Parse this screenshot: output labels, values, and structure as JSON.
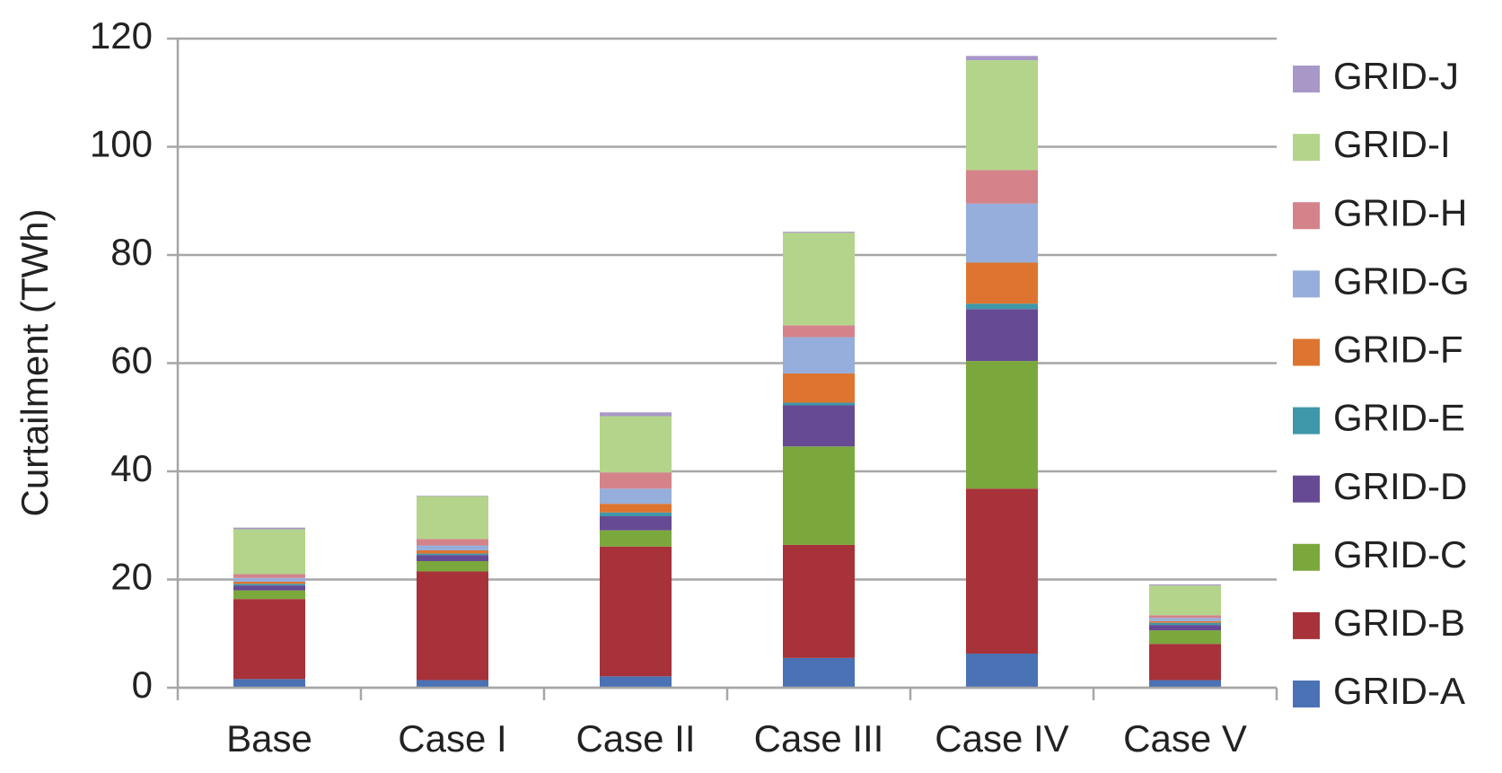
{
  "chart_data": {
    "type": "stacked-bar",
    "y_label": "Curtailment (TWh)",
    "categories": [
      "Base",
      "Case I",
      "Case II",
      "Case III",
      "Case IV",
      "Case V"
    ],
    "series": [
      {
        "name": "GRID-A",
        "color": "#4a72b4",
        "values": [
          1.6,
          1.4,
          2.1,
          5.5,
          6.3,
          1.4
        ]
      },
      {
        "name": "GRID-B",
        "color": "#a8323a",
        "values": [
          14.8,
          20.1,
          24,
          20.9,
          30.5,
          6.7
        ]
      },
      {
        "name": "GRID-C",
        "color": "#7ba83c",
        "values": [
          1.6,
          1.9,
          3,
          18.2,
          23.6,
          2.5
        ]
      },
      {
        "name": "GRID-D",
        "color": "#674a94",
        "values": [
          0.9,
          1.1,
          2.6,
          7.6,
          9.6,
          1
        ]
      },
      {
        "name": "GRID-E",
        "color": "#3f97aa",
        "values": [
          0.3,
          0.3,
          0.7,
          0.5,
          1,
          0.4
        ]
      },
      {
        "name": "GRID-F",
        "color": "#dd7530",
        "values": [
          0.4,
          0.6,
          1.6,
          5.4,
          7.6,
          0.3
        ]
      },
      {
        "name": "GRID-G",
        "color": "#96aedb",
        "values": [
          0.7,
          0.9,
          2.8,
          6.7,
          10.9,
          0.6
        ]
      },
      {
        "name": "GRID-H",
        "color": "#d4838b",
        "values": [
          0.7,
          1.2,
          3,
          2.2,
          6.2,
          0.5
        ]
      },
      {
        "name": "GRID-I",
        "color": "#b3d48a",
        "values": [
          8.3,
          7.9,
          10.4,
          17.1,
          20.3,
          5.5
        ]
      },
      {
        "name": "GRID-J",
        "color": "#a898c8",
        "values": [
          0.3,
          0.1,
          0.7,
          0.2,
          0.8,
          0.2
        ]
      }
    ],
    "ylim": [
      0,
      120
    ],
    "yticks": [
      0,
      20,
      40,
      60,
      80,
      100,
      120
    ],
    "grid": true
  }
}
